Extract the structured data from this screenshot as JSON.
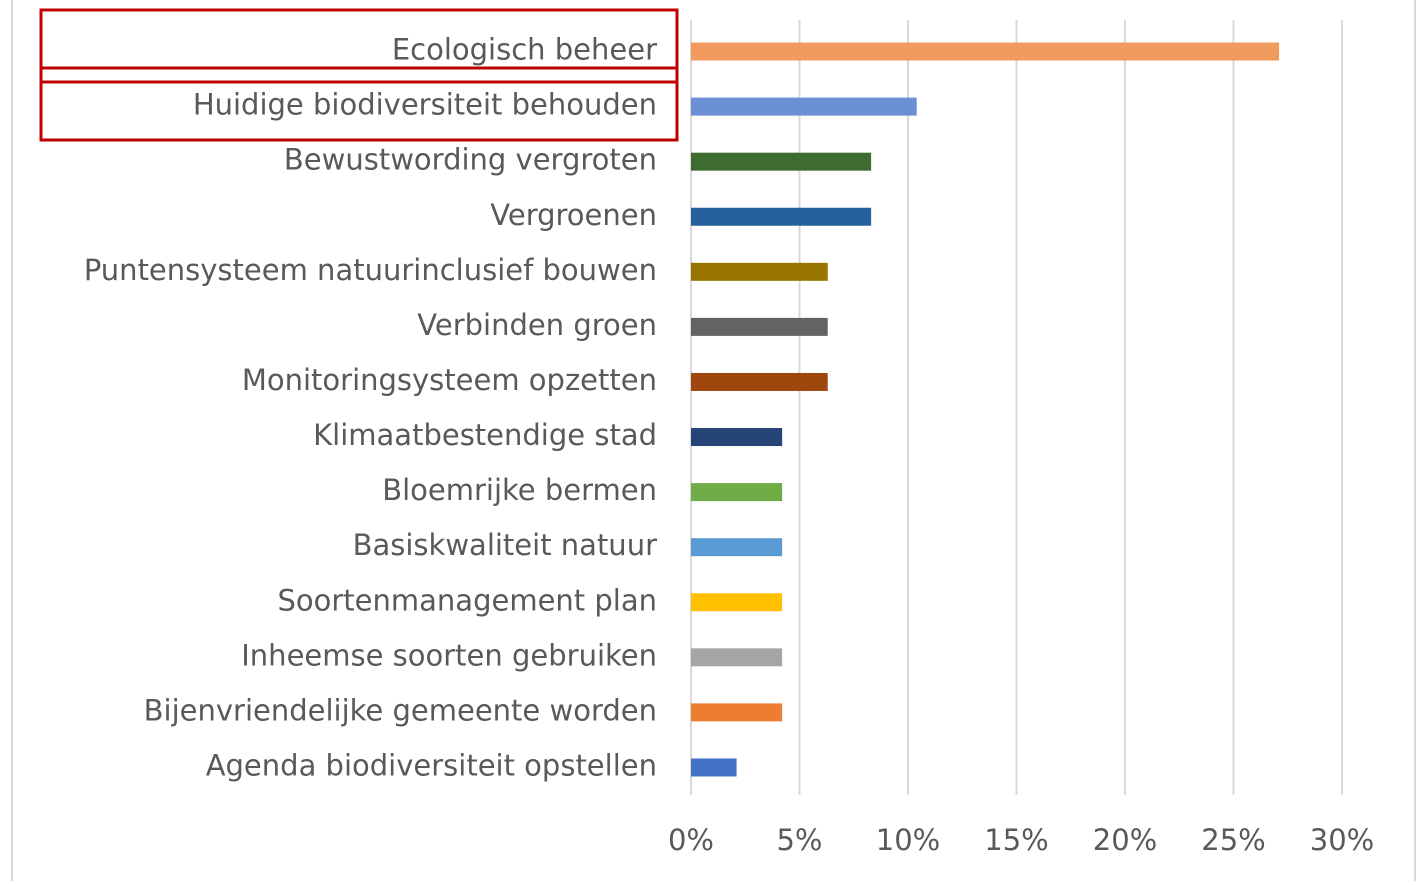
{
  "chart_data": {
    "type": "bar",
    "orientation": "horizontal",
    "categories": [
      "Ecologisch beheer",
      "Huidige biodiversiteit behouden",
      "Bewustwording vergroten",
      "Vergroenen",
      "Puntensysteem natuurinclusief bouwen",
      "Verbinden groen",
      "Monitoringsysteem opzetten",
      "Klimaatbestendige stad",
      "Bloemrijke bermen",
      "Basiskwaliteit natuur",
      "Soortenmanagement plan",
      "Inheemse soorten gebruiken",
      "Bijenvriendelijke gemeente worden",
      "Agenda biodiversiteit opstellen"
    ],
    "values": [
      27.1,
      10.4,
      8.3,
      8.3,
      6.3,
      6.3,
      6.3,
      4.2,
      4.2,
      4.2,
      4.2,
      4.2,
      4.2,
      2.1
    ],
    "colors": [
      "#f29b5e",
      "#6b8fd4",
      "#3e6b2f",
      "#25619a",
      "#977500",
      "#636363",
      "#9e480e",
      "#264478",
      "#70ad47",
      "#5b9bd5",
      "#ffc000",
      "#a5a5a5",
      "#ed7d31",
      "#4472c4"
    ],
    "xlim": [
      0,
      30
    ],
    "xticks": [
      {
        "value": 0,
        "label": "0%"
      },
      {
        "value": 5,
        "label": "5%"
      },
      {
        "value": 10,
        "label": "10%"
      },
      {
        "value": 15,
        "label": "15%"
      },
      {
        "value": 20,
        "label": "20%"
      },
      {
        "value": 25,
        "label": "25%"
      },
      {
        "value": 30,
        "label": "30%"
      }
    ],
    "grid": true
  }
}
